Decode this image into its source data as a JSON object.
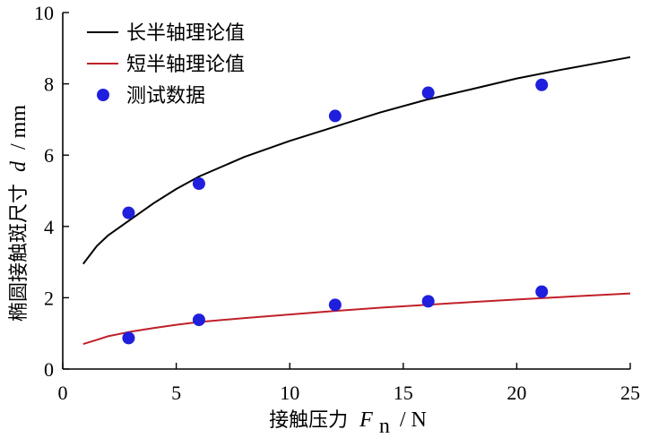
{
  "chart_data": {
    "type": "line",
    "xlabel": {
      "prefix": "接触压力",
      "symbol": "F",
      "subscript": "n",
      "unit": "/ N"
    },
    "ylabel": {
      "prefix": "椭圆接触斑尺寸",
      "symbol": "d",
      "unit": "/ mm"
    },
    "xlim": [
      0,
      25
    ],
    "ylim": [
      0,
      10
    ],
    "x_ticks": [
      "0",
      "5",
      "10",
      "15",
      "20",
      "25"
    ],
    "y_ticks": [
      "0",
      "2",
      "4",
      "6",
      "8",
      "10"
    ],
    "grid": false,
    "legend": "top-left",
    "series": [
      {
        "name": "长半轴理论值",
        "kind": "line",
        "color": "#000000",
        "x": [
          0.9,
          1.5,
          2,
          3,
          4,
          5,
          6,
          8,
          10,
          12,
          14,
          16,
          18,
          20,
          22,
          25
        ],
        "y": [
          2.95,
          3.45,
          3.75,
          4.2,
          4.65,
          5.05,
          5.4,
          5.95,
          6.4,
          6.8,
          7.2,
          7.55,
          7.85,
          8.15,
          8.4,
          8.75
        ]
      },
      {
        "name": "短半轴理论值",
        "kind": "line",
        "color": "#c0202a",
        "x": [
          0.9,
          1.5,
          2,
          3,
          4,
          5,
          6,
          8,
          10,
          12,
          14,
          16,
          18,
          20,
          22,
          25
        ],
        "y": [
          0.7,
          0.82,
          0.92,
          1.05,
          1.15,
          1.24,
          1.32,
          1.43,
          1.53,
          1.63,
          1.72,
          1.8,
          1.88,
          1.95,
          2.02,
          2.12
        ]
      },
      {
        "name": "测试数据",
        "kind": "scatter",
        "color": "#1f1fdd",
        "x": [
          2.9,
          6.0,
          12.0,
          16.1,
          21.1,
          2.9,
          6.0,
          12.0,
          16.1,
          21.1
        ],
        "y": [
          4.38,
          5.2,
          7.1,
          7.75,
          7.97,
          0.87,
          1.38,
          1.8,
          1.9,
          2.17
        ]
      }
    ]
  }
}
